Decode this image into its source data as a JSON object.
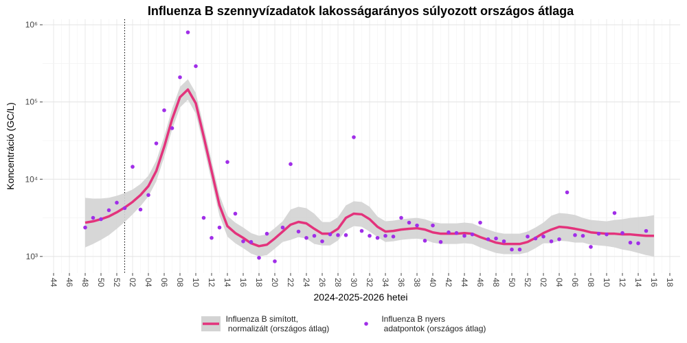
{
  "chart_data": {
    "type": "line",
    "title": "Influenza B szennyvízadatok lakosságarányos súlyozott országos átlaga",
    "xlabel": "2024-2025-2026 hetei",
    "ylabel": "Koncentráció (GC/L)",
    "log_y": true,
    "grid": true,
    "reference_line_index": 9,
    "band_color": "#d3d3d3",
    "categories": [
      "44",
      null,
      "46",
      null,
      "48",
      null,
      "50",
      null,
      "52",
      null,
      "02",
      null,
      "04",
      null,
      "06",
      null,
      "08",
      null,
      "10",
      null,
      "12",
      null,
      "14",
      null,
      "16",
      null,
      "18",
      null,
      "20",
      null,
      "22",
      null,
      "24",
      null,
      "26",
      null,
      "28",
      null,
      "30",
      null,
      "32",
      null,
      "34",
      null,
      "36",
      null,
      "38",
      null,
      "40",
      null,
      "42",
      null,
      "44",
      null,
      "46",
      null,
      "48",
      null,
      "50",
      null,
      "52",
      null,
      "02",
      null,
      "04",
      null,
      "06",
      null,
      "08",
      null,
      "10",
      null,
      "12",
      null,
      "14",
      null,
      "16",
      null,
      "18"
    ],
    "ylim": [
      610,
      1180000
    ],
    "yticks": [
      {
        "value": 1000,
        "label": "10³"
      },
      {
        "value": 10000,
        "label": "10⁴"
      },
      {
        "value": 100000,
        "label": "10⁵"
      },
      {
        "value": 1000000,
        "label": "10⁶"
      }
    ],
    "series": [
      {
        "name": "Influenza B simított,\n normalizált (országos átlag)",
        "color": "#e3337c",
        "style": "line",
        "values": [
          null,
          null,
          null,
          null,
          2740,
          2850,
          3040,
          3300,
          3730,
          4300,
          5080,
          6240,
          8140,
          12800,
          26300,
          59800,
          115500,
          145000,
          96000,
          35800,
          12800,
          4580,
          2470,
          2010,
          1740,
          1480,
          1360,
          1420,
          1710,
          2100,
          2580,
          2800,
          2680,
          2280,
          1970,
          1970,
          2280,
          3160,
          3580,
          3510,
          3040,
          2420,
          2100,
          2140,
          2230,
          2280,
          2320,
          2230,
          2050,
          1970,
          1970,
          1970,
          2010,
          1970,
          1780,
          1640,
          1510,
          1450,
          1450,
          1450,
          1540,
          1740,
          2010,
          2230,
          2420,
          2370,
          2280,
          2180,
          2050,
          2010,
          1970,
          1970,
          1930,
          1930,
          1890,
          1850,
          1850,
          null,
          null
        ],
        "lower": [
          null,
          null,
          null,
          null,
          1310,
          1450,
          1640,
          1890,
          2280,
          2790,
          3510,
          4490,
          5980,
          9400,
          19300,
          43900,
          84900,
          107000,
          70500,
          26300,
          9400,
          3370,
          1810,
          1480,
          1280,
          1090,
          1000,
          1040,
          1260,
          1540,
          1640,
          1780,
          1700,
          1450,
          1390,
          1390,
          1610,
          2180,
          2470,
          2420,
          2100,
          1780,
          1540,
          1570,
          1640,
          1680,
          1700,
          1640,
          1510,
          1450,
          1450,
          1450,
          1480,
          1450,
          1310,
          1200,
          1110,
          1070,
          1070,
          1070,
          1130,
          1280,
          1480,
          1480,
          1600,
          1570,
          1510,
          1510,
          1420,
          1390,
          1360,
          1310,
          1230,
          1180,
          1110,
          1040,
          1000,
          null,
          null
        ],
        "upper": [
          null,
          null,
          null,
          null,
          5740,
          5610,
          5630,
          5750,
          6100,
          6620,
          7360,
          8670,
          11100,
          17400,
          35800,
          81400,
          157000,
          197000,
          131000,
          48700,
          17400,
          6230,
          3360,
          2740,
          2370,
          2010,
          1850,
          1930,
          2330,
          2860,
          4060,
          4400,
          4210,
          3580,
          2790,
          2790,
          3230,
          4580,
          5180,
          5080,
          4400,
          3290,
          2860,
          2910,
          3030,
          3100,
          3160,
          3030,
          2790,
          2680,
          2680,
          2680,
          2740,
          2680,
          2420,
          2230,
          2060,
          1970,
          1970,
          1970,
          2100,
          2370,
          2740,
          3370,
          3650,
          3580,
          3440,
          3160,
          2970,
          2910,
          2850,
          2970,
          3030,
          3160,
          3230,
          3290,
          3430,
          null,
          null
        ]
      },
      {
        "name": "Influenza B nyers\n adatpontok (országos átlag)",
        "color": "#a02ee8",
        "style": "points",
        "values": [
          null,
          null,
          null,
          null,
          2370,
          3160,
          3040,
          3970,
          4970,
          4220,
          14500,
          4050,
          6240,
          29100,
          78100,
          45800,
          209000,
          798000,
          291000,
          3160,
          1740,
          2370,
          16700,
          3580,
          1570,
          1540,
          960,
          1970,
          866,
          2370,
          15700,
          2100,
          1740,
          1850,
          1570,
          1930,
          1890,
          1890,
          35000,
          2140,
          1850,
          1740,
          1850,
          1810,
          3160,
          2740,
          2520,
          1600,
          2520,
          1540,
          2050,
          2010,
          1850,
          1930,
          2740,
          1670,
          1710,
          1570,
          1230,
          1230,
          1810,
          1710,
          1810,
          1570,
          1670,
          6760,
          1890,
          1850,
          1330,
          1970,
          1930,
          3650,
          2010,
          1510,
          1480,
          2140,
          null,
          null,
          null
        ]
      }
    ]
  }
}
